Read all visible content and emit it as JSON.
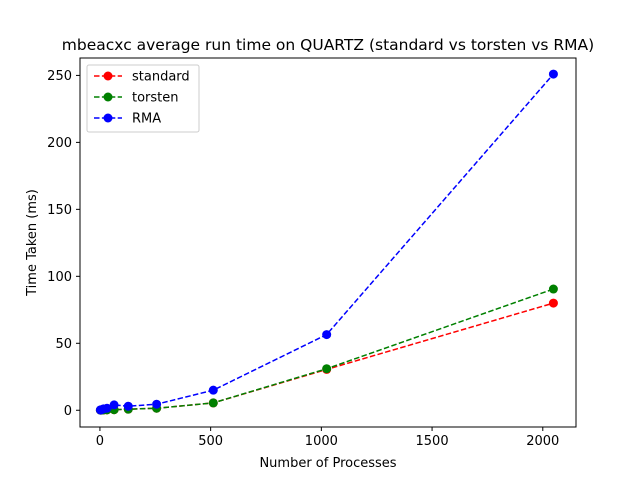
{
  "chart_data": {
    "type": "line",
    "title": "mbeacxc average run time on QUARTZ (standard vs torsten vs RMA)",
    "xlabel": "Number of Processes",
    "ylabel": "Time Taken (ms)",
    "xlim": [
      -90,
      2150
    ],
    "ylim": [
      -12.5,
      263
    ],
    "xticks": [
      0,
      500,
      1000,
      1500,
      2000
    ],
    "yticks": [
      0,
      50,
      100,
      150,
      200,
      250
    ],
    "x": [
      2,
      4,
      8,
      16,
      32,
      64,
      128,
      256,
      512,
      1024,
      2048
    ],
    "grid": false,
    "legend": "top-left",
    "series": [
      {
        "name": "standard",
        "color": "#ff0000",
        "values": [
          0.1,
          0.1,
          0.1,
          0.2,
          0.3,
          0.4,
          0.8,
          1.5,
          5.5,
          30.5,
          80.0
        ]
      },
      {
        "name": "torsten",
        "color": "#008000",
        "values": [
          0.1,
          0.1,
          0.1,
          0.2,
          0.3,
          0.4,
          0.8,
          1.5,
          5.5,
          31.0,
          90.5
        ]
      },
      {
        "name": "RMA",
        "color": "#0000ff",
        "values": [
          0.2,
          0.3,
          0.5,
          1.0,
          1.5,
          4.0,
          3.0,
          4.5,
          15.0,
          56.5,
          251.0
        ]
      }
    ]
  }
}
